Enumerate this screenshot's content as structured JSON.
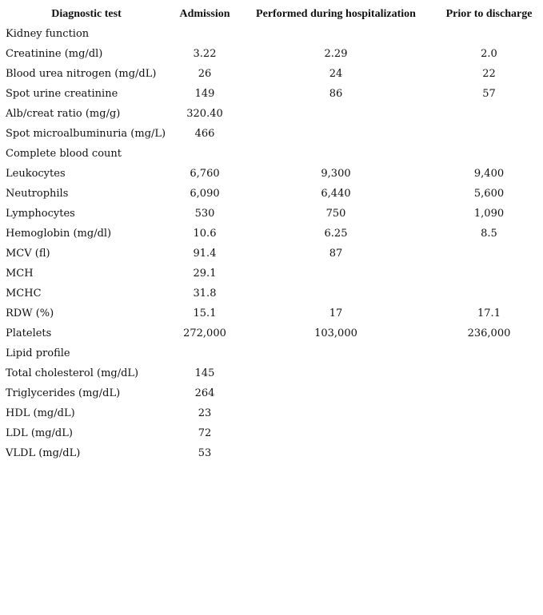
{
  "table": {
    "headers": [
      "Diagnostic test",
      "Admission",
      "Performed during hospitalization",
      "Prior to discharge"
    ],
    "rows": [
      {
        "label": "Kidney function",
        "admission": "",
        "during": "",
        "discharge": ""
      },
      {
        "label": "Creatinine (mg/dl)",
        "admission": "3.22",
        "during": "2.29",
        "discharge": "2.0"
      },
      {
        "label": "Blood urea nitrogen (mg/dL)",
        "admission": "26",
        "during": "24",
        "discharge": "22"
      },
      {
        "label": "Spot urine creatinine",
        "admission": "149",
        "during": "86",
        "discharge": "57"
      },
      {
        "label": "Alb/creat ratio (mg/g)",
        "admission": "320.40",
        "during": "",
        "discharge": ""
      },
      {
        "label": "Spot microalbuminuria (mg/L)",
        "admission": "466",
        "during": "",
        "discharge": ""
      },
      {
        "label": "Complete blood count",
        "admission": "",
        "during": "",
        "discharge": ""
      },
      {
        "label": "Leukocytes",
        "admission": "6,760",
        "during": "9,300",
        "discharge": "9,400"
      },
      {
        "label": "Neutrophils",
        "admission": "6,090",
        "during": "6,440",
        "discharge": "5,600"
      },
      {
        "label": "Lymphocytes",
        "admission": "530",
        "during": "750",
        "discharge": "1,090"
      },
      {
        "label": "Hemoglobin (mg/dl)",
        "admission": "10.6",
        "during": "6.25",
        "discharge": "8.5"
      },
      {
        "label": "MCV (fl)",
        "admission": "91.4",
        "during": "87",
        "discharge": ""
      },
      {
        "label": "MCH",
        "admission": "29.1",
        "during": "",
        "discharge": ""
      },
      {
        "label": "MCHC",
        "admission": "31.8",
        "during": "",
        "discharge": ""
      },
      {
        "label": "RDW (%)",
        "admission": "15.1",
        "during": "17",
        "discharge": "17.1"
      },
      {
        "label": "Platelets",
        "admission": "272,000",
        "during": "103,000",
        "discharge": "236,000"
      },
      {
        "label": "Lipid profile",
        "admission": "",
        "during": "",
        "discharge": ""
      },
      {
        "label": "Total cholesterol (mg/dL)",
        "admission": "145",
        "during": "",
        "discharge": ""
      },
      {
        "label": "Triglycerides (mg/dL)",
        "admission": "264",
        "during": "",
        "discharge": ""
      },
      {
        "label": "HDL (mg/dL)",
        "admission": "23",
        "during": "",
        "discharge": ""
      },
      {
        "label": "LDL (mg/dL)",
        "admission": "72",
        "during": "",
        "discharge": ""
      },
      {
        "label": "VLDL (mg/dL)",
        "admission": "53",
        "during": "",
        "discharge": ""
      }
    ]
  }
}
